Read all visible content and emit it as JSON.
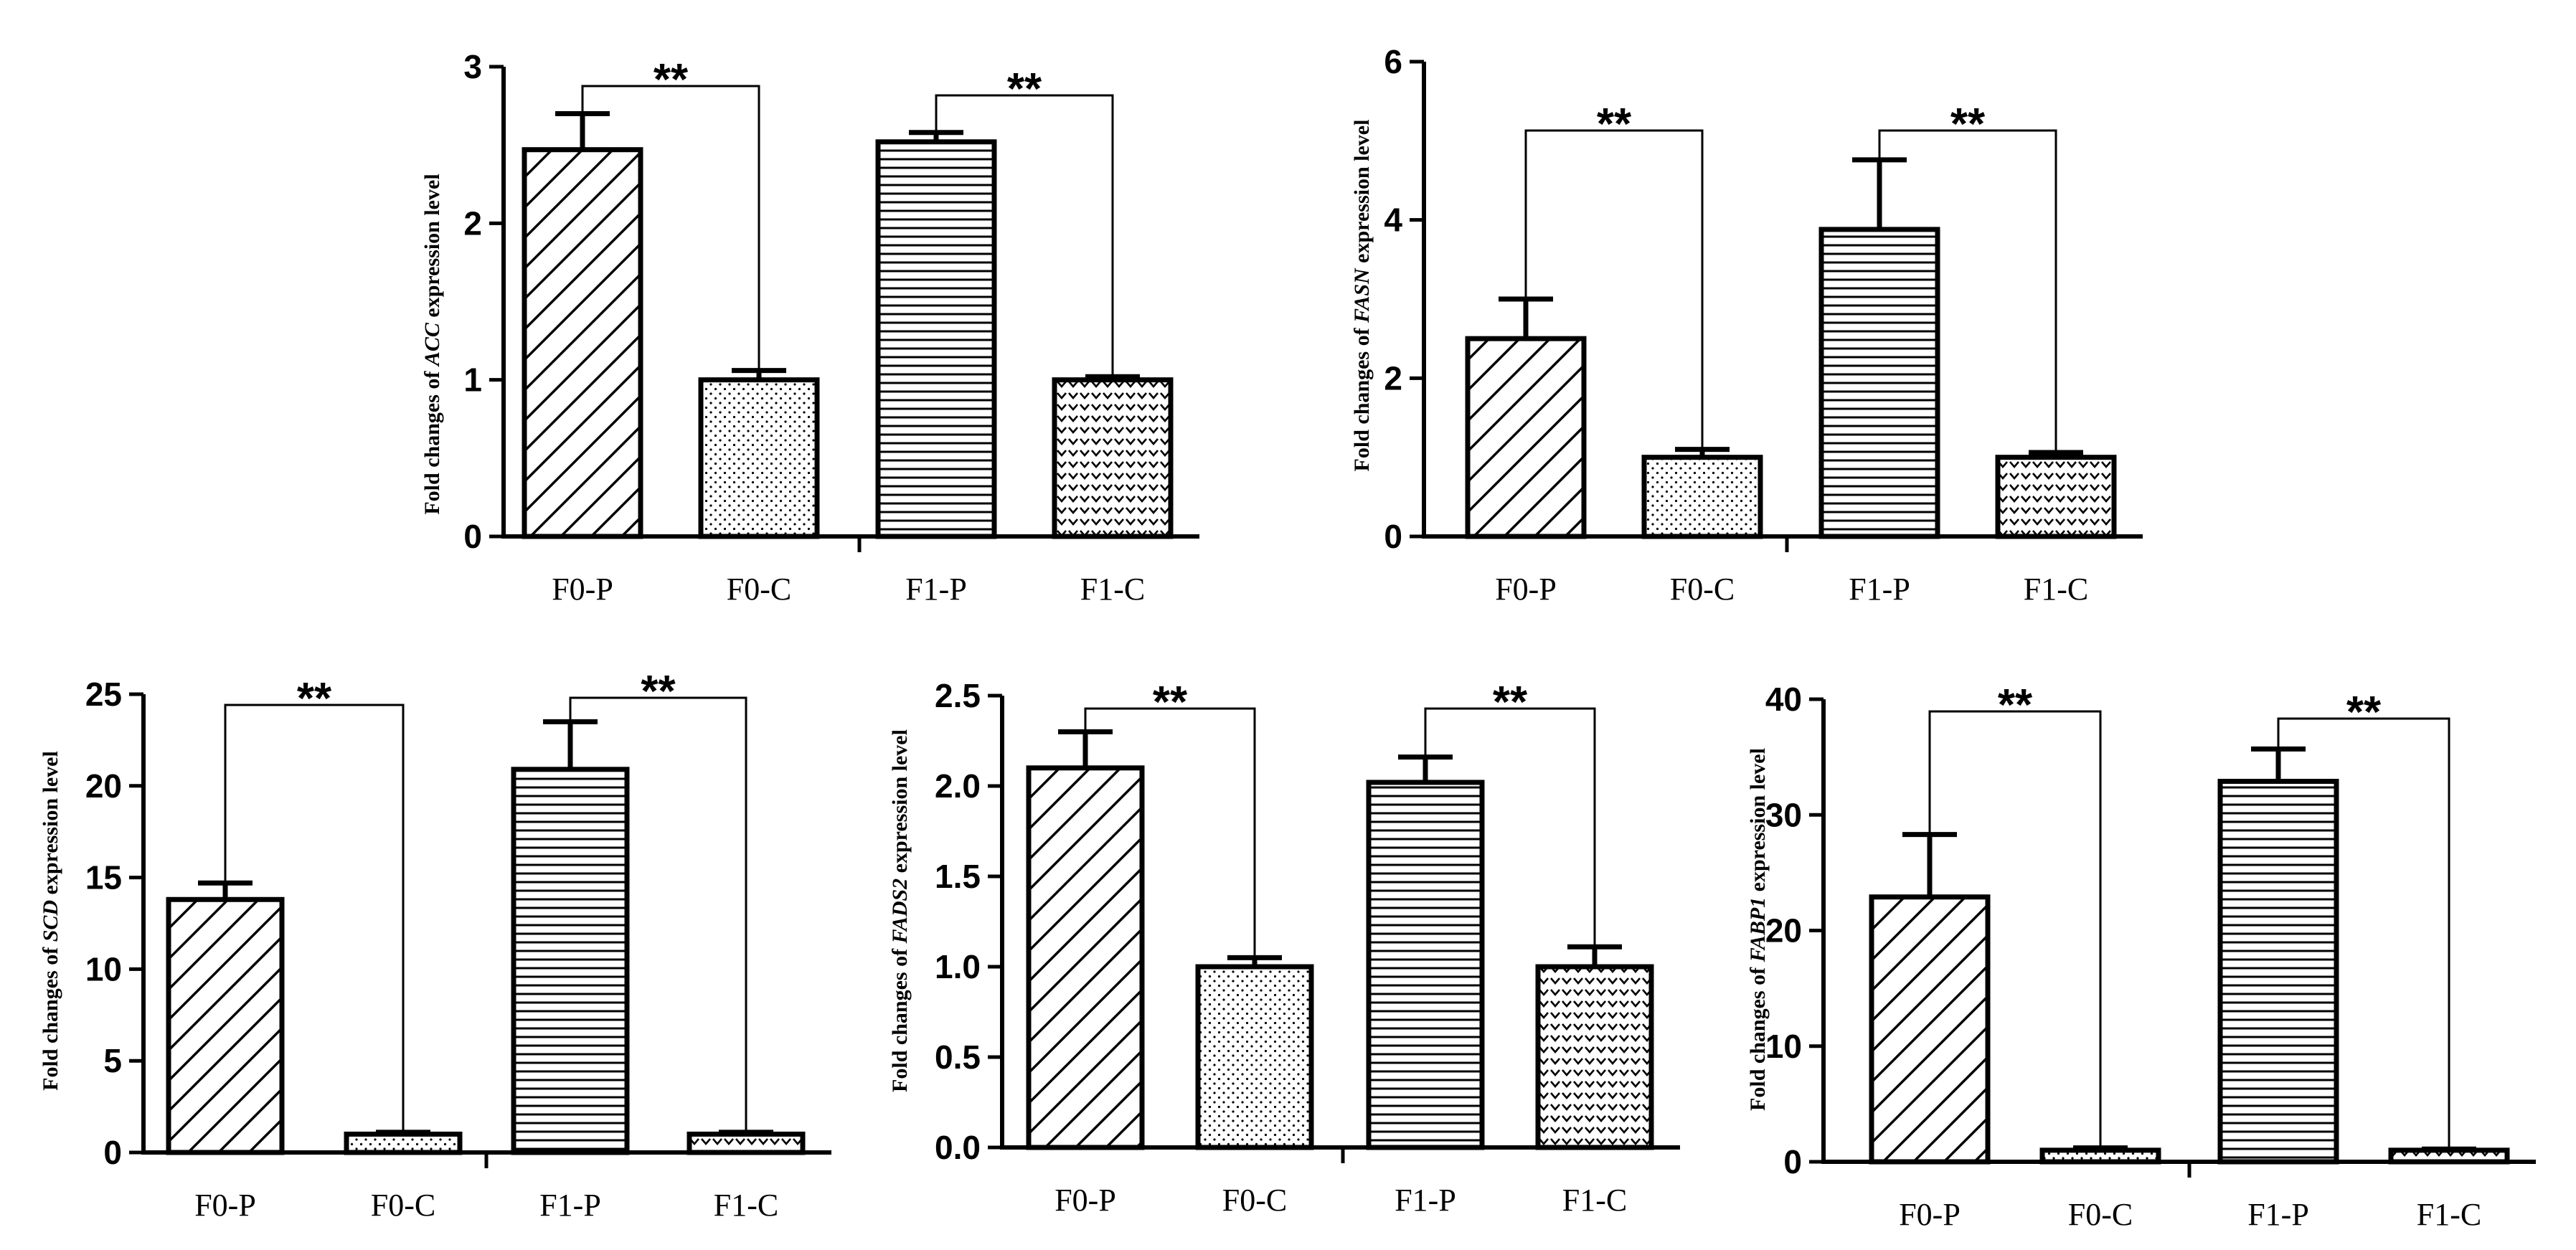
{
  "chart_data": [
    {
      "type": "bar",
      "gene": "ACC",
      "ylabel_prefix": "Fold changes of ",
      "ylabel_gene": "ACC",
      "ylabel_suffix": " expression level",
      "categories": [
        "F0-P",
        "F0-C",
        "F1-P",
        "F1-C"
      ],
      "values": [
        2.47,
        1.0,
        2.52,
        1.0
      ],
      "errors": [
        0.23,
        0.06,
        0.06,
        0.02
      ],
      "patterns": [
        "diag",
        "dots",
        "hlines",
        "chevrons"
      ],
      "ylim": [
        0,
        3
      ],
      "yticks": [
        0,
        1,
        2,
        3
      ],
      "significance": [
        {
          "pair": [
            0,
            1
          ],
          "label": "**"
        },
        {
          "pair": [
            2,
            3
          ],
          "label": "**"
        }
      ]
    },
    {
      "type": "bar",
      "gene": "FASN",
      "ylabel_prefix": "Fold changes of ",
      "ylabel_gene": "FASN",
      "ylabel_suffix": " expression level",
      "categories": [
        "F0-P",
        "F0-C",
        "F1-P",
        "F1-C"
      ],
      "values": [
        2.5,
        1.0,
        3.88,
        1.0
      ],
      "errors": [
        0.5,
        0.1,
        0.88,
        0.06
      ],
      "patterns": [
        "diag",
        "dots",
        "hlines",
        "chevrons"
      ],
      "ylim": [
        0,
        6
      ],
      "yticks": [
        0,
        2,
        4,
        6
      ],
      "significance": [
        {
          "pair": [
            0,
            1
          ],
          "label": "**"
        },
        {
          "pair": [
            2,
            3
          ],
          "label": "**"
        }
      ]
    },
    {
      "type": "bar",
      "gene": "SCD",
      "ylabel_prefix": "Fold changes of ",
      "ylabel_gene": "SCD",
      "ylabel_suffix": " expression level",
      "categories": [
        "F0-P",
        "F0-C",
        "F1-P",
        "F1-C"
      ],
      "values": [
        13.8,
        1.0,
        20.9,
        1.0
      ],
      "errors": [
        0.9,
        0.1,
        2.6,
        0.1
      ],
      "patterns": [
        "diag",
        "dots",
        "hlines",
        "chevrons"
      ],
      "ylim": [
        0,
        25
      ],
      "yticks": [
        0,
        5,
        10,
        15,
        20,
        25
      ],
      "significance": [
        {
          "pair": [
            0,
            1
          ],
          "label": "**"
        },
        {
          "pair": [
            2,
            3
          ],
          "label": "**"
        }
      ]
    },
    {
      "type": "bar",
      "gene": "FADS2",
      "ylabel_prefix": "Fold changes of ",
      "ylabel_gene": "FADS2",
      "ylabel_suffix": " expression level",
      "categories": [
        "F0-P",
        "F0-C",
        "F1-P",
        "F1-C"
      ],
      "values": [
        2.1,
        1.0,
        2.02,
        1.0
      ],
      "errors": [
        0.2,
        0.05,
        0.14,
        0.11
      ],
      "patterns": [
        "diag",
        "dots",
        "hlines",
        "chevrons"
      ],
      "ylim": [
        0,
        2.5
      ],
      "yticks": [
        "0.0",
        "0.5",
        "1.0",
        "1.5",
        "2.0",
        "2.5"
      ],
      "significance": [
        {
          "pair": [
            0,
            1
          ],
          "label": "**"
        },
        {
          "pair": [
            2,
            3
          ],
          "label": "**"
        }
      ]
    },
    {
      "type": "bar",
      "gene": "FABP1",
      "ylabel_prefix": "Fold changes of ",
      "ylabel_gene": "FABP1",
      "ylabel_suffix": " expression level",
      "categories": [
        "F0-P",
        "F0-C",
        "F1-P",
        "F1-C"
      ],
      "values": [
        22.9,
        1.0,
        32.9,
        1.0
      ],
      "errors": [
        5.4,
        0.2,
        2.8,
        0.1
      ],
      "patterns": [
        "diag",
        "dots",
        "hlines",
        "chevrons"
      ],
      "ylim": [
        0,
        40
      ],
      "yticks": [
        0,
        10,
        20,
        30,
        40
      ],
      "significance": [
        {
          "pair": [
            0,
            1
          ],
          "label": "**"
        },
        {
          "pair": [
            2,
            3
          ],
          "label": "**"
        }
      ]
    }
  ]
}
